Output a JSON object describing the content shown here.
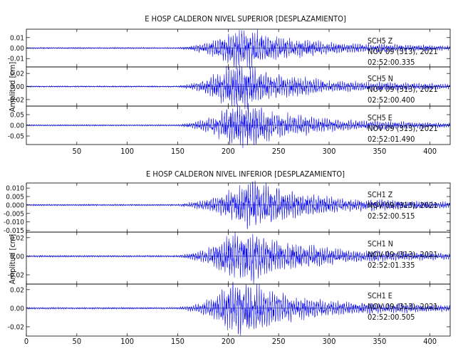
{
  "chart_data": [
    {
      "type": "line",
      "title": "E HOSP CALDERON NIVEL SUPERIOR [DESPLAZAMIENTO]",
      "ylabel": "Amplitud [cm]",
      "xlim": [
        0,
        420
      ],
      "xticks": [
        50,
        100,
        150,
        200,
        250,
        300,
        350,
        400
      ],
      "series": [
        {
          "name": "SCH5  Z",
          "date": "NOV 09 (313), 2021",
          "time": "02:52:00.335",
          "color": "#0000ee",
          "ylim": [
            -0.018,
            0.018
          ],
          "yticks": [
            0.01,
            0.0,
            -0.01
          ],
          "ytick_labels": [
            "0.01",
            "0.00",
            "-0.01"
          ],
          "peak_amplitude": 0.016,
          "onset": 150,
          "peak_center": 215
        },
        {
          "name": "SCH5  N",
          "date": "NOV 09 (313), 2021",
          "time": "02:52:00.400",
          "color": "#0000ee",
          "ylim": [
            -0.03,
            0.03
          ],
          "yticks": [
            0.02,
            0.0,
            -0.02
          ],
          "ytick_labels": [
            "0.02",
            "0.00",
            "-0.02"
          ],
          "peak_amplitude": 0.028,
          "onset": 150,
          "peak_center": 210
        },
        {
          "name": "SCH5  E",
          "date": "NOV 09 (313), 2021",
          "time": "02:52:01.490",
          "color": "#0000ee",
          "ylim": [
            -0.09,
            0.09
          ],
          "yticks": [
            0.05,
            0.0,
            -0.05
          ],
          "ytick_labels": [
            "0.05",
            "0.00",
            "-0.05"
          ],
          "peak_amplitude": 0.085,
          "onset": 150,
          "peak_center": 215
        }
      ]
    },
    {
      "type": "line",
      "title": "E HOSP CALDERON NIVEL INFERIOR [DESPLAZAMIENTO]",
      "ylabel": "Amplitud [cm]",
      "xlim": [
        0,
        420
      ],
      "xticks": [
        0,
        50,
        100,
        150,
        200,
        250,
        300,
        350,
        400
      ],
      "series": [
        {
          "name": "SCH1  Z",
          "date": "NOV 09 (313), 2021",
          "time": "02:52:00.515",
          "color": "#0000ee",
          "ylim": [
            -0.016,
            0.013
          ],
          "yticks": [
            0.01,
            0.005,
            0.0,
            -0.005,
            -0.01,
            -0.015
          ],
          "ytick_labels": [
            "0.010",
            "0.005",
            "0.000",
            "-0.005",
            "-0.010",
            "-0.015"
          ],
          "peak_amplitude": 0.012,
          "onset": 150,
          "peak_center": 225
        },
        {
          "name": "SCH1  N",
          "date": "NOV 09 (313), 2021",
          "time": "02:52:01.335",
          "color": "#0000ee",
          "ylim": [
            -0.03,
            0.026
          ],
          "yticks": [
            0.02,
            0.0,
            -0.02
          ],
          "ytick_labels": [
            "0.02",
            "0.00",
            "-0.02"
          ],
          "peak_amplitude": 0.024,
          "onset": 150,
          "peak_center": 215
        },
        {
          "name": "SCH1  E",
          "date": "NOV 09 (313), 2021",
          "time": "02:52:00.505",
          "color": "#0000ee",
          "ylim": [
            -0.03,
            0.026
          ],
          "yticks": [
            0.02,
            0.0,
            -0.02
          ],
          "ytick_labels": [
            "0.02",
            "0.00",
            "-0.02"
          ],
          "peak_amplitude": 0.024,
          "onset": 150,
          "peak_center": 215
        }
      ]
    }
  ]
}
